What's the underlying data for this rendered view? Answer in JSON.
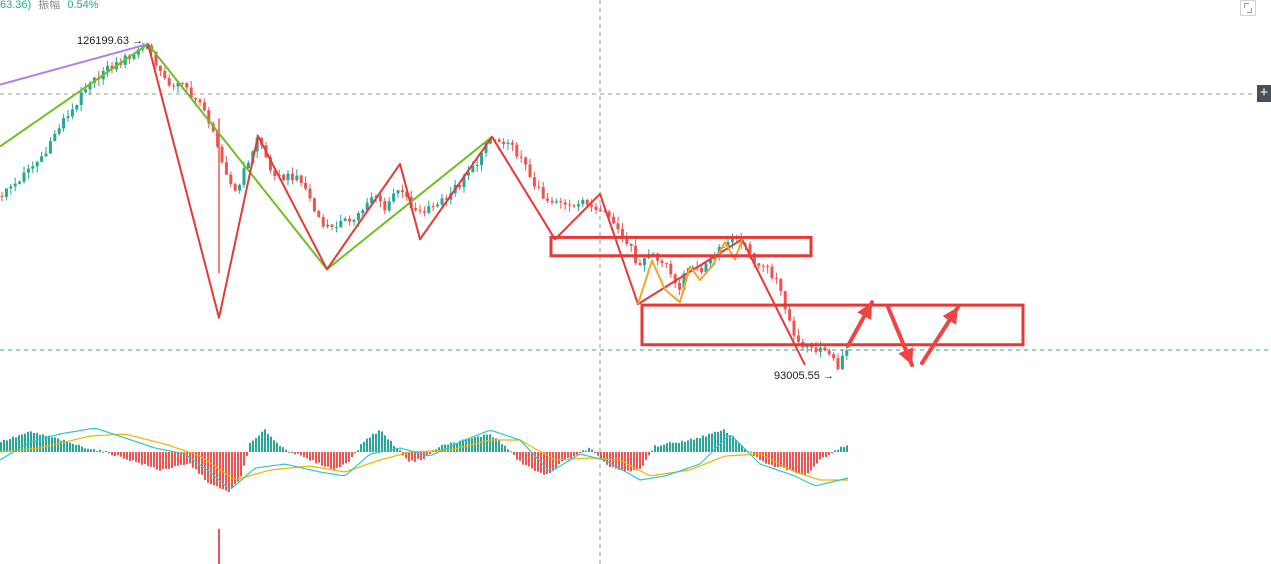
{
  "header": {
    "value_fragment": "63.36)",
    "amplitude_label": "振幅",
    "amplitude_value": "0.54%"
  },
  "price_labels": {
    "high": "126199.63",
    "low": "93005.55"
  },
  "colors": {
    "up": "#26a69a",
    "down": "#ef5350",
    "drawing_red": "#e53935",
    "drawing_green": "#6cc024",
    "drawing_purple": "#b07ee8",
    "drawing_orange": "#f3a42e",
    "macd_dif": "#2ec7c9",
    "macd_dea": "#f5b000"
  },
  "icons": {
    "fullscreen": "fullscreen-icon",
    "add": "plus-icon"
  },
  "chart_data": {
    "type": "candlestick",
    "price_range": [
      76000,
      128500
    ],
    "high_label_value": 126199.63,
    "low_label_value": 93005.55,
    "price_path": [
      [
        0,
        110500
      ],
      [
        20,
        112200
      ],
      [
        40,
        114300
      ],
      [
        60,
        117700
      ],
      [
        80,
        120600
      ],
      [
        100,
        123100
      ],
      [
        120,
        124300
      ],
      [
        148,
        126199.63
      ],
      [
        165,
        122200
      ],
      [
        185,
        121800
      ],
      [
        200,
        119900
      ],
      [
        212,
        117800
      ],
      [
        220,
        114000
      ],
      [
        235,
        111000
      ],
      [
        245,
        113200
      ],
      [
        258,
        116600
      ],
      [
        275,
        112100
      ],
      [
        290,
        112700
      ],
      [
        305,
        111500
      ],
      [
        315,
        108800
      ],
      [
        327,
        107300
      ],
      [
        345,
        107700
      ],
      [
        360,
        108800
      ],
      [
        375,
        110500
      ],
      [
        385,
        109300
      ],
      [
        400,
        111700
      ],
      [
        410,
        109200
      ],
      [
        420,
        108600
      ],
      [
        430,
        109200
      ],
      [
        445,
        110400
      ],
      [
        460,
        111700
      ],
      [
        475,
        113700
      ],
      [
        492,
        116500
      ],
      [
        500,
        115900
      ],
      [
        515,
        115300
      ],
      [
        530,
        112600
      ],
      [
        545,
        109800
      ],
      [
        555,
        109700
      ],
      [
        570,
        109800
      ],
      [
        585,
        109700
      ],
      [
        600,
        109400
      ],
      [
        612,
        108000
      ],
      [
        625,
        106300
      ],
      [
        638,
        103400
      ],
      [
        652,
        104800
      ],
      [
        665,
        103300
      ],
      [
        680,
        101000
      ],
      [
        690,
        103600
      ],
      [
        700,
        102800
      ],
      [
        712,
        104200
      ],
      [
        725,
        105600
      ],
      [
        740,
        106000
      ],
      [
        752,
        104000
      ],
      [
        765,
        103200
      ],
      [
        775,
        102000
      ],
      [
        785,
        99000
      ],
      [
        795,
        96000
      ],
      [
        805,
        94800
      ],
      [
        815,
        94600
      ],
      [
        825,
        94500
      ],
      [
        838,
        93005.55
      ],
      [
        848,
        94600
      ]
    ],
    "drawings": {
      "green_zigzag_x": [
        0,
        148,
        327,
        492
      ],
      "green_zigzag_price": [
        115600,
        126199.63,
        102900,
        116600
      ],
      "red_zigzag_x": [
        148,
        219,
        258,
        327,
        400,
        420,
        492,
        555,
        600,
        638,
        742,
        805
      ],
      "red_zigzag_price": [
        126199.63,
        97900,
        116700,
        102900,
        113800,
        106000,
        116600,
        106000,
        110700,
        99300,
        106000,
        93000
      ],
      "orange_zigzag_x": [
        638,
        652,
        665,
        680,
        690,
        700,
        712,
        725,
        735,
        742
      ],
      "orange_zigzag_price": [
        99300,
        103800,
        100800,
        99500,
        103200,
        101800,
        103200,
        105700,
        103900,
        106000
      ],
      "purple_line_x": [
        0,
        148
      ],
      "purple_line_price": [
        122000,
        126199.63
      ],
      "resistance_box_price": [
        104300,
        106200
      ],
      "resistance_box_x": [
        551,
        811
      ],
      "support_box_price": [
        95100,
        99200
      ],
      "support_box_x": [
        642,
        1023
      ],
      "projection_x": [
        848,
        872,
        888,
        912,
        922,
        958
      ],
      "projection_price": [
        95000,
        99500,
        99000,
        93000,
        93200,
        99000
      ]
    },
    "macd": {
      "note_units": "relative",
      "range": [
        -1,
        1
      ],
      "histogram_path": [
        [
          0,
          0.25
        ],
        [
          30,
          0.5
        ],
        [
          55,
          0.35
        ],
        [
          80,
          0.15
        ],
        [
          105,
          0.0
        ],
        [
          130,
          -0.2
        ],
        [
          160,
          -0.45
        ],
        [
          190,
          -0.3
        ],
        [
          210,
          -0.8
        ],
        [
          228,
          -1.0
        ],
        [
          240,
          -0.7
        ],
        [
          250,
          0.2
        ],
        [
          265,
          0.55
        ],
        [
          280,
          0.15
        ],
        [
          300,
          -0.1
        ],
        [
          320,
          -0.3
        ],
        [
          335,
          -0.45
        ],
        [
          350,
          -0.2
        ],
        [
          365,
          0.3
        ],
        [
          380,
          0.55
        ],
        [
          395,
          0.15
        ],
        [
          410,
          -0.25
        ],
        [
          425,
          -0.15
        ],
        [
          440,
          0.15
        ],
        [
          465,
          0.3
        ],
        [
          490,
          0.45
        ],
        [
          505,
          0.15
        ],
        [
          520,
          -0.25
        ],
        [
          545,
          -0.6
        ],
        [
          565,
          -0.2
        ],
        [
          590,
          0.1
        ],
        [
          605,
          -0.3
        ],
        [
          625,
          -0.5
        ],
        [
          640,
          -0.45
        ],
        [
          655,
          0.15
        ],
        [
          690,
          0.3
        ],
        [
          725,
          0.55
        ],
        [
          745,
          0.1
        ],
        [
          765,
          -0.3
        ],
        [
          790,
          -0.45
        ],
        [
          805,
          -0.6
        ],
        [
          820,
          -0.2
        ],
        [
          835,
          0.05
        ],
        [
          848,
          0.2
        ]
      ],
      "dif_path": [
        [
          0,
          -0.2
        ],
        [
          30,
          0.25
        ],
        [
          60,
          0.45
        ],
        [
          95,
          0.6
        ],
        [
          125,
          0.35
        ],
        [
          155,
          0.1
        ],
        [
          185,
          -0.05
        ],
        [
          210,
          -0.5
        ],
        [
          230,
          -0.95
        ],
        [
          255,
          -0.4
        ],
        [
          285,
          -0.3
        ],
        [
          320,
          -0.5
        ],
        [
          345,
          -0.6
        ],
        [
          370,
          -0.05
        ],
        [
          400,
          0.1
        ],
        [
          430,
          -0.1
        ],
        [
          460,
          0.25
        ],
        [
          490,
          0.55
        ],
        [
          520,
          0.3
        ],
        [
          550,
          -0.5
        ],
        [
          580,
          -0.05
        ],
        [
          605,
          -0.2
        ],
        [
          640,
          -0.7
        ],
        [
          665,
          -0.6
        ],
        [
          700,
          -0.3
        ],
        [
          730,
          0.45
        ],
        [
          760,
          -0.3
        ],
        [
          795,
          -0.6
        ],
        [
          815,
          -0.85
        ],
        [
          848,
          -0.65
        ]
      ],
      "dea_path": [
        [
          0,
          0.0
        ],
        [
          40,
          0.1
        ],
        [
          90,
          0.4
        ],
        [
          125,
          0.45
        ],
        [
          165,
          0.2
        ],
        [
          200,
          -0.1
        ],
        [
          235,
          -0.7
        ],
        [
          270,
          -0.45
        ],
        [
          310,
          -0.35
        ],
        [
          345,
          -0.5
        ],
        [
          380,
          -0.2
        ],
        [
          410,
          0.0
        ],
        [
          450,
          0.05
        ],
        [
          490,
          0.3
        ],
        [
          520,
          0.3
        ],
        [
          555,
          -0.2
        ],
        [
          590,
          -0.15
        ],
        [
          620,
          -0.2
        ],
        [
          650,
          -0.6
        ],
        [
          690,
          -0.45
        ],
        [
          725,
          -0.1
        ],
        [
          760,
          -0.05
        ],
        [
          795,
          -0.5
        ],
        [
          820,
          -0.7
        ],
        [
          848,
          -0.7
        ]
      ]
    },
    "volume_spike_x": 219
  }
}
